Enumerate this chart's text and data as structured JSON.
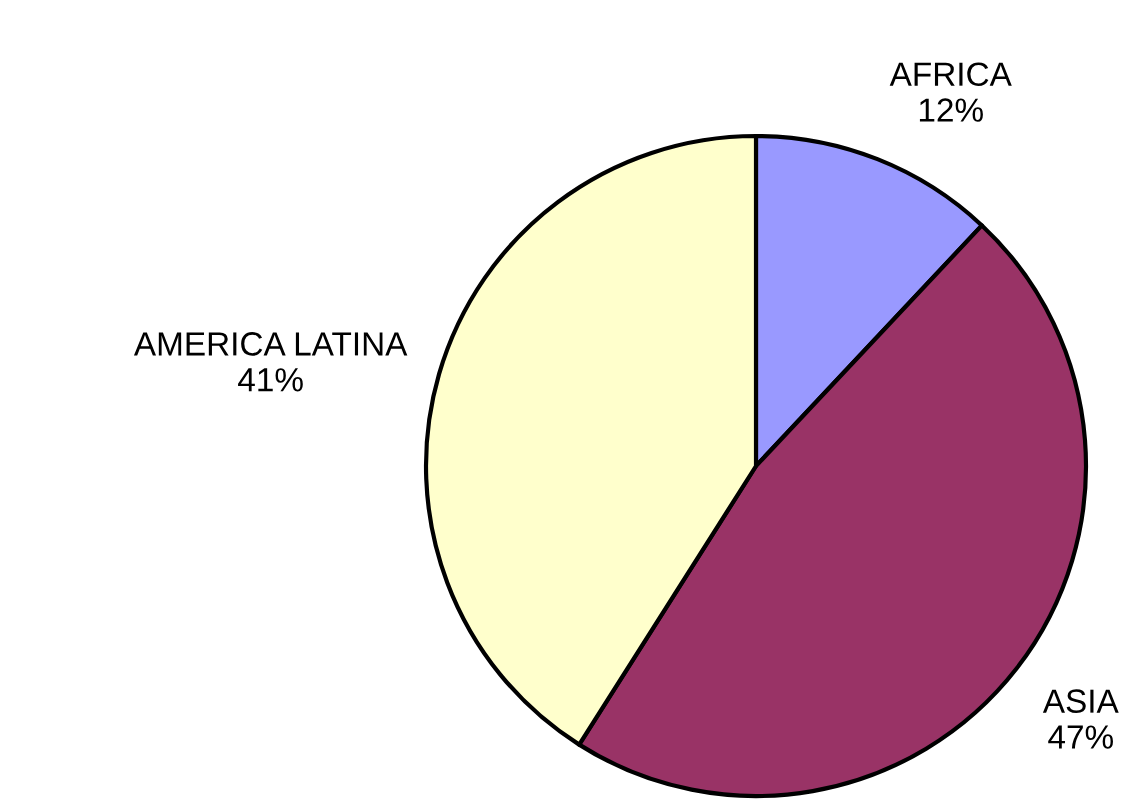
{
  "chart_data": {
    "type": "pie",
    "categories": [
      "AFRICA",
      "ASIA",
      "AMERICA LATINA"
    ],
    "values": [
      12,
      47,
      41
    ],
    "colors": [
      "#9999ff",
      "#993366",
      "#ffffcc"
    ],
    "value_labels": [
      "12%",
      "47%",
      "41%"
    ]
  }
}
